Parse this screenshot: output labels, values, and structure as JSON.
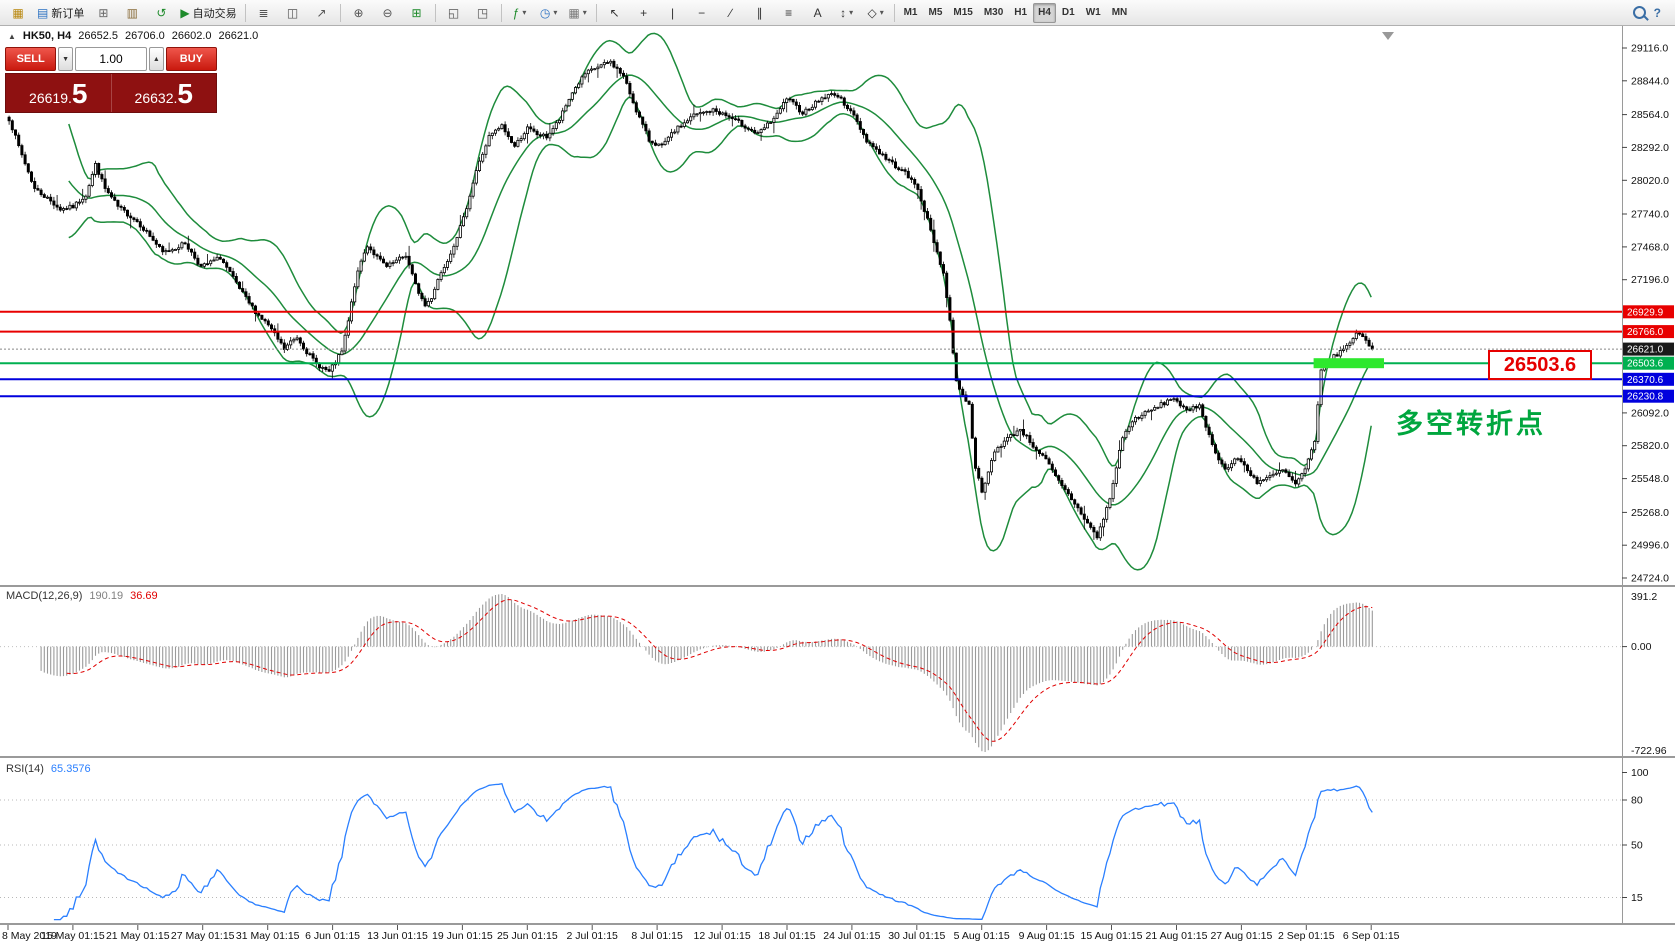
{
  "toolbar": {
    "groups": [
      {
        "items": [
          {
            "name": "app-icon",
            "glyph": "▦",
            "color": "#b8860b"
          },
          {
            "name": "new-order-button",
            "glyph": "▤",
            "color": "#2b71c2",
            "label": "新订单"
          },
          {
            "name": "chart-plus-icon",
            "glyph": "⊞",
            "color": "#666666"
          },
          {
            "name": "profiles-icon",
            "glyph": "▥",
            "color": "#8a6d3b"
          },
          {
            "name": "refresh-icon",
            "glyph": "↺",
            "color": "#1d8a2a"
          },
          {
            "name": "autotrading-button",
            "glyph": "▶",
            "color": "#1d8a2a",
            "label": "自动交易"
          }
        ]
      },
      {
        "items": [
          {
            "name": "bar-chart-icon",
            "glyph": "≣",
            "color": "#555555"
          },
          {
            "name": "candlestick-chart-icon",
            "glyph": "◫",
            "color": "#555555"
          },
          {
            "name": "line-chart-icon",
            "glyph": "↗",
            "color": "#555555"
          }
        ]
      },
      {
        "items": [
          {
            "name": "zoom-in-icon",
            "glyph": "⊕",
            "color": "#555555"
          },
          {
            "name": "zoom-out-icon",
            "glyph": "⊖",
            "color": "#555555"
          },
          {
            "name": "grid-icon",
            "glyph": "⊞",
            "color": "#1d8a2a"
          }
        ]
      },
      {
        "items": [
          {
            "name": "tile-windows-icon",
            "glyph": "◱",
            "color": "#555555"
          },
          {
            "name": "cascade-windows-icon",
            "glyph": "◳",
            "color": "#555555"
          }
        ]
      },
      {
        "items": [
          {
            "name": "indicators-icon",
            "glyph": "ƒ",
            "color": "#1d8a2a",
            "dropdown": true
          },
          {
            "name": "periods-icon",
            "glyph": "◷",
            "color": "#2b71c2",
            "dropdown": true
          },
          {
            "name": "templates-icon",
            "glyph": "▦",
            "color": "#777777",
            "dropdown": true
          }
        ]
      },
      {
        "items": [
          {
            "name": "cursor-icon",
            "glyph": "↖",
            "color": "#333333"
          },
          {
            "name": "crosshair-icon",
            "glyph": "+",
            "color": "#333333"
          },
          {
            "name": "vertical-line-icon",
            "glyph": "|",
            "color": "#333333"
          },
          {
            "name": "horizontal-line-icon",
            "glyph": "−",
            "color": "#333333"
          },
          {
            "name": "trendline-icon",
            "glyph": "∕",
            "color": "#333333"
          },
          {
            "name": "channel-icon",
            "glyph": "∥",
            "color": "#333333"
          },
          {
            "name": "fibonacci-icon",
            "glyph": "≡",
            "color": "#333333"
          },
          {
            "name": "text-icon",
            "glyph": "A",
            "color": "#333333"
          },
          {
            "name": "arrows-icon",
            "glyph": "↕",
            "color": "#333333",
            "dropdown": true
          },
          {
            "name": "shapes-icon",
            "glyph": "◇",
            "color": "#333333",
            "dropdown": true
          }
        ]
      }
    ],
    "timeframes": [
      "M1",
      "M5",
      "M15",
      "M30",
      "H1",
      "H4",
      "D1",
      "W1",
      "MN"
    ],
    "active_timeframe": "H4",
    "right_items": [
      {
        "name": "search-icon",
        "type": "magnifier"
      },
      {
        "name": "help-icon",
        "glyph": "?"
      }
    ]
  },
  "quote": {
    "arrow": "▲",
    "symbol": "HK50, H4",
    "open": "26652.5",
    "high": "26706.0",
    "low": "26602.0",
    "close": "26621.0"
  },
  "trade_panel": {
    "sell_label": "SELL",
    "buy_label": "BUY",
    "volume": "1.00",
    "spin_down": "▼",
    "spin_up": "▲",
    "sell_price": "26619.",
    "sell_big": "5",
    "buy_price": "26632.",
    "buy_big": "5"
  },
  "annotations": {
    "callout": "26503.6",
    "turning_point_text": "多空转折点"
  },
  "levels": [
    {
      "label": "26929.9",
      "price": 26929.9,
      "color": "#e80000",
      "style": "solid",
      "width": 2
    },
    {
      "label": "26766.0",
      "price": 26766.0,
      "color": "#e80000",
      "style": "solid",
      "width": 2
    },
    {
      "label": "26621.0",
      "price": 26621.0,
      "color": "#888888",
      "tag_color": "#1a1a1a",
      "style": "dotted",
      "width": 1
    },
    {
      "label": "26503.6",
      "price": 26503.6,
      "color": "#00b050",
      "style": "solid",
      "width": 2
    },
    {
      "label": "26370.6",
      "price": 26370.6,
      "color": "#0000dd",
      "style": "solid",
      "width": 2
    },
    {
      "label": "26230.8",
      "price": 26230.8,
      "color": "#0000dd",
      "style": "solid",
      "width": 2
    }
  ],
  "highlight": {
    "price": 26503.6,
    "from_candle": 408,
    "to_candle": 430,
    "color": "#2ee82e",
    "thickness": 10
  },
  "price_axis": {
    "labels": [
      "29116.0",
      "28844.0",
      "28564.0",
      "28292.0",
      "28020.0",
      "27740.0",
      "27468.0",
      "27196.0",
      "26092.0",
      "25820.0",
      "25548.0",
      "25268.0",
      "24996.0",
      "24724.0"
    ]
  },
  "macd_panel": {
    "name": "MACD(12,26,9)",
    "value": "190.19",
    "signal_value": "36.69",
    "axis_max": "391.2",
    "axis_zero": "0.00",
    "axis_min": "-722.96"
  },
  "rsi_panel": {
    "name": "RSI(14)",
    "value": "65.3576",
    "axis_labels": [
      "100",
      "80",
      "50",
      "15"
    ],
    "levels": [
      80,
      50,
      15
    ]
  },
  "dates": [
    "8 May 2019",
    "15 May 01:15",
    "21 May 01:15",
    "27 May 01:15",
    "31 May 01:15",
    "6 Jun 01:15",
    "13 Jun 01:15",
    "19 Jun 01:15",
    "25 Jun 01:15",
    "2 Jul 01:15",
    "8 Jul 01:15",
    "12 Jul 01:15",
    "18 Jul 01:15",
    "24 Jul 01:15",
    "30 Jul 01:15",
    "5 Aug 01:15",
    "9 Aug 01:15",
    "15 Aug 01:15",
    "21 Aug 01:15",
    "27 Aug 01:15",
    "2 Sep 01:15",
    "6 Sep 01:15"
  ],
  "colors": {
    "bull": "#ffffff",
    "bear": "#000000",
    "candle_outline": "#000000",
    "bollinger": "#1e8c3c",
    "macd_hist": "#9a9a9a",
    "macd_signal": "#e00000",
    "rsi_line": "#2a7fff",
    "panel_dark": "#8e1111",
    "callout": "#e60000",
    "annotation_green": "#00a63e",
    "highlight_green": "#2ee82e"
  },
  "chart_data": {
    "type": "candlestick",
    "symbol": "HK50",
    "timeframe": "H4",
    "ylim": [
      24724.0,
      29116.0
    ],
    "candle_count": 427,
    "noise_seed": 7,
    "noise_amp": 18,
    "wick_amp": 30,
    "bollinger": {
      "period": 20,
      "deviation": 2
    },
    "macd_params": [
      12,
      26,
      9
    ],
    "rsi_period": 14,
    "price_waypoints": [
      [
        0,
        28530
      ],
      [
        3,
        28300
      ],
      [
        8,
        27950
      ],
      [
        12,
        27870
      ],
      [
        16,
        27780
      ],
      [
        20,
        27800
      ],
      [
        24,
        27900
      ],
      [
        27,
        28150
      ],
      [
        30,
        27950
      ],
      [
        34,
        27800
      ],
      [
        40,
        27680
      ],
      [
        44,
        27560
      ],
      [
        48,
        27420
      ],
      [
        52,
        27460
      ],
      [
        55,
        27500
      ],
      [
        60,
        27300
      ],
      [
        63,
        27340
      ],
      [
        66,
        27380
      ],
      [
        69,
        27250
      ],
      [
        72,
        27120
      ],
      [
        75,
        27000
      ],
      [
        78,
        26900
      ],
      [
        81,
        26820
      ],
      [
        84,
        26700
      ],
      [
        86,
        26620
      ],
      [
        88,
        26680
      ],
      [
        90,
        26720
      ],
      [
        93,
        26600
      ],
      [
        96,
        26500
      ],
      [
        100,
        26430
      ],
      [
        104,
        26600
      ],
      [
        106,
        26850
      ],
      [
        108,
        27150
      ],
      [
        110,
        27350
      ],
      [
        112,
        27480
      ],
      [
        115,
        27380
      ],
      [
        118,
        27300
      ],
      [
        121,
        27350
      ],
      [
        124,
        27400
      ],
      [
        127,
        27150
      ],
      [
        130,
        26980
      ],
      [
        132,
        27050
      ],
      [
        134,
        27200
      ],
      [
        138,
        27420
      ],
      [
        142,
        27700
      ],
      [
        146,
        28100
      ],
      [
        150,
        28380
      ],
      [
        154,
        28470
      ],
      [
        156,
        28380
      ],
      [
        158,
        28300
      ],
      [
        160,
        28380
      ],
      [
        162,
        28450
      ],
      [
        165,
        28400
      ],
      [
        168,
        28380
      ],
      [
        172,
        28520
      ],
      [
        176,
        28750
      ],
      [
        180,
        28900
      ],
      [
        184,
        28960
      ],
      [
        188,
        29000
      ],
      [
        192,
        28880
      ],
      [
        196,
        28600
      ],
      [
        200,
        28350
      ],
      [
        204,
        28300
      ],
      [
        208,
        28430
      ],
      [
        214,
        28560
      ],
      [
        220,
        28600
      ],
      [
        223,
        28570
      ],
      [
        228,
        28500
      ],
      [
        234,
        28400
      ],
      [
        240,
        28560
      ],
      [
        243,
        28700
      ],
      [
        248,
        28580
      ],
      [
        254,
        28700
      ],
      [
        258,
        28740
      ],
      [
        263,
        28600
      ],
      [
        268,
        28350
      ],
      [
        274,
        28200
      ],
      [
        280,
        28080
      ],
      [
        284,
        27950
      ],
      [
        288,
        27600
      ],
      [
        292,
        27250
      ],
      [
        294,
        26850
      ],
      [
        296,
        26350
      ],
      [
        300,
        26150
      ],
      [
        302,
        25650
      ],
      [
        304,
        25420
      ],
      [
        308,
        25780
      ],
      [
        312,
        25880
      ],
      [
        316,
        25960
      ],
      [
        320,
        25820
      ],
      [
        324,
        25700
      ],
      [
        328,
        25520
      ],
      [
        332,
        25380
      ],
      [
        336,
        25220
      ],
      [
        340,
        25060
      ],
      [
        344,
        25380
      ],
      [
        348,
        25900
      ],
      [
        352,
        26050
      ],
      [
        356,
        26100
      ],
      [
        360,
        26160
      ],
      [
        364,
        26220
      ],
      [
        368,
        26100
      ],
      [
        372,
        26160
      ],
      [
        376,
        25820
      ],
      [
        380,
        25620
      ],
      [
        384,
        25720
      ],
      [
        390,
        25520
      ],
      [
        394,
        25560
      ],
      [
        398,
        25620
      ],
      [
        402,
        25500
      ],
      [
        405,
        25620
      ],
      [
        408,
        25850
      ],
      [
        410,
        26460
      ],
      [
        414,
        26560
      ],
      [
        418,
        26640
      ],
      [
        421,
        26760
      ],
      [
        424,
        26700
      ],
      [
        426,
        26621
      ]
    ]
  }
}
